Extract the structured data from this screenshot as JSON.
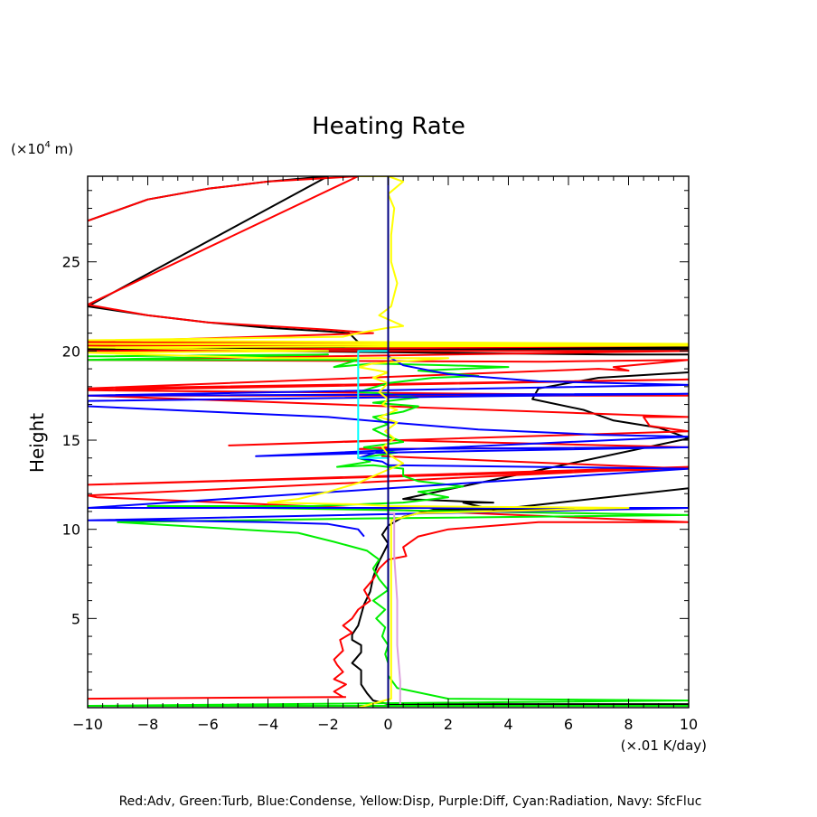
{
  "chart_data": {
    "type": "line",
    "title": "Heating Rate",
    "ylabel": "Height",
    "y_unit": "(×10",
    "y_unit_exp": "4",
    "y_unit_suffix": " m)",
    "x_unit": "(×.01 K/day)",
    "xlim": [
      -10,
      10
    ],
    "ylim": [
      0,
      29.8
    ],
    "x_ticks": [
      -10,
      -8,
      -6,
      -4,
      -2,
      0,
      2,
      4,
      6,
      8,
      10
    ],
    "x_tick_labels": [
      "−10",
      "−8",
      "−6",
      "−4",
      "−2",
      "0",
      "2",
      "4",
      "6",
      "8",
      "10"
    ],
    "y_ticks": [
      5,
      10,
      15,
      20,
      25
    ],
    "y_tick_labels": [
      "5",
      "10",
      "15",
      "20",
      "25"
    ],
    "grid": false,
    "legend_text": "Red:Adv, Green:Turb, Blue:Condense, Yellow:Disp, Purple:Diff, Cyan:Radiation, Navy: SfcFluc",
    "legend_position": "bottom",
    "colors": {
      "red": "#ff0000",
      "black": "#000000",
      "green": "#00ee00",
      "blue": "#0000ff",
      "yellow": "#ffff00",
      "purple": "#dda0dd",
      "cyan": "#00ffff",
      "navy": "#000080"
    },
    "series": [
      {
        "key": "black",
        "color": "#000000",
        "points": [
          [
            -10,
            27.3
          ],
          [
            -8,
            28.5
          ],
          [
            -6,
            29.1
          ],
          [
            -4,
            29.5
          ],
          [
            -2,
            29.8
          ],
          [
            -10,
            22.5
          ],
          [
            -8,
            22.0
          ],
          [
            -6,
            21.6
          ],
          [
            -4,
            21.3
          ],
          [
            -2,
            21.1
          ],
          [
            -1.3,
            21.0
          ],
          [
            -1,
            20.5
          ],
          [
            -10,
            20.2
          ],
          [
            10,
            20.2
          ],
          [
            10,
            20.1
          ],
          [
            -10,
            20.1
          ],
          [
            7.5,
            19.8
          ],
          [
            10,
            19.8
          ],
          [
            10,
            18.8
          ],
          [
            7,
            18.5
          ],
          [
            5,
            17.9
          ],
          [
            4.8,
            17.3
          ],
          [
            6.5,
            16.7
          ],
          [
            7.5,
            16.1
          ],
          [
            9,
            15.7
          ],
          [
            10,
            15.1
          ],
          [
            0.5,
            11.7
          ],
          [
            3.5,
            11.5
          ],
          [
            2.5,
            11.5
          ],
          [
            3.5,
            11.1
          ],
          [
            10,
            12.3
          ],
          [
            10,
            11.2
          ],
          [
            1.5,
            11.1
          ],
          [
            0.5,
            10.7
          ],
          [
            0,
            10.2
          ],
          [
            -0.2,
            9.7
          ],
          [
            0,
            9.2
          ],
          [
            -0.3,
            8.2
          ],
          [
            -0.4,
            7.8
          ],
          [
            -0.5,
            7.3
          ],
          [
            -0.6,
            6.5
          ],
          [
            -0.8,
            5.8
          ],
          [
            -0.9,
            5.2
          ],
          [
            -1,
            4.6
          ],
          [
            -1.2,
            4.1
          ],
          [
            -1.2,
            3.8
          ],
          [
            -0.9,
            3.5
          ],
          [
            -0.9,
            3.1
          ],
          [
            -1.2,
            2.5
          ],
          [
            -0.9,
            2.1
          ],
          [
            -0.9,
            1.5
          ],
          [
            -0.9,
            1.3
          ],
          [
            -0.7,
            0.8
          ],
          [
            -0.5,
            0.4
          ],
          [
            0,
            0.2
          ],
          [
            10,
            0.2
          ]
        ]
      },
      {
        "key": "red",
        "color": "#ff0000",
        "points": [
          [
            -10,
            27.3
          ],
          [
            -8,
            28.5
          ],
          [
            -6,
            29.1
          ],
          [
            -4,
            29.5
          ],
          [
            -2,
            29.7
          ],
          [
            -1,
            29.8
          ],
          [
            -10,
            22.6
          ],
          [
            -8,
            22.0
          ],
          [
            -6,
            21.6
          ],
          [
            -4,
            21.4
          ],
          [
            -2,
            21.2
          ],
          [
            -0.5,
            21.0
          ],
          [
            -10,
            20.5
          ],
          [
            5,
            20.4
          ],
          [
            -10,
            20.3
          ],
          [
            10,
            20.3
          ],
          [
            -10,
            20.0
          ],
          [
            10,
            20.0
          ],
          [
            -10,
            19.5
          ],
          [
            5.2,
            19.4
          ],
          [
            10,
            19.5
          ],
          [
            7.5,
            19.1
          ],
          [
            8,
            18.9
          ],
          [
            7,
            19.0
          ],
          [
            -10,
            17.9
          ],
          [
            10,
            18.4
          ],
          [
            -10,
            17.8
          ],
          [
            10,
            17.5
          ],
          [
            -10,
            17.5
          ],
          [
            10,
            16.3
          ],
          [
            8.5,
            16.3
          ],
          [
            8.7,
            15.8
          ],
          [
            10,
            15.5
          ],
          [
            -5.3,
            14.7
          ],
          [
            0,
            15.0
          ],
          [
            10,
            14.6
          ],
          [
            -1,
            14.5
          ],
          [
            0,
            14.6
          ],
          [
            -0.2,
            14.1
          ],
          [
            10,
            13.4
          ],
          [
            -10,
            12.5
          ],
          [
            10,
            13.5
          ],
          [
            -10,
            11.9
          ],
          [
            -9.7,
            11.8
          ],
          [
            10,
            10.4
          ],
          [
            5,
            10.4
          ],
          [
            2,
            10.0
          ],
          [
            1,
            9.6
          ],
          [
            0.5,
            9.0
          ],
          [
            0.6,
            8.5
          ],
          [
            0,
            8.3
          ],
          [
            -0.3,
            7.8
          ],
          [
            -0.5,
            7.2
          ],
          [
            -0.8,
            6.6
          ],
          [
            -0.6,
            6.0
          ],
          [
            -1,
            5.5
          ],
          [
            -1.2,
            5.0
          ],
          [
            -1.5,
            4.6
          ],
          [
            -1.2,
            4.2
          ],
          [
            -1.6,
            3.8
          ],
          [
            -1.5,
            3.2
          ],
          [
            -1.8,
            2.7
          ],
          [
            -1.7,
            2.4
          ],
          [
            -1.5,
            2.0
          ],
          [
            -1.8,
            1.6
          ],
          [
            -1.4,
            1.3
          ],
          [
            -1.8,
            0.9
          ],
          [
            -1.5,
            0.6
          ],
          [
            -10,
            0.5
          ],
          [
            -1.4,
            0.6
          ]
        ]
      },
      {
        "key": "green",
        "color": "#00ee00",
        "points": [
          [
            -10,
            19.7
          ],
          [
            -2,
            19.8
          ],
          [
            -10,
            19.5
          ],
          [
            -1,
            19.5
          ],
          [
            -1.8,
            19.1
          ],
          [
            -0.5,
            19.3
          ],
          [
            2,
            19.2
          ],
          [
            4,
            19.1
          ],
          [
            1,
            18.9
          ],
          [
            3,
            18.6
          ],
          [
            1.5,
            18.5
          ],
          [
            0,
            18.2
          ],
          [
            -1,
            17.7
          ],
          [
            0,
            17.6
          ],
          [
            1,
            17.4
          ],
          [
            -0.5,
            17.1
          ],
          [
            1,
            16.9
          ],
          [
            0.5,
            16.6
          ],
          [
            -0.5,
            16.3
          ],
          [
            0,
            15.9
          ],
          [
            -0.5,
            15.6
          ],
          [
            0,
            15.2
          ],
          [
            0.5,
            14.9
          ],
          [
            -0.8,
            14.6
          ],
          [
            0.3,
            14.3
          ],
          [
            -1,
            14.0
          ],
          [
            -0.6,
            13.8
          ],
          [
            -1.7,
            13.5
          ],
          [
            -0.5,
            13.6
          ],
          [
            0.5,
            13.4
          ],
          [
            0.5,
            13.0
          ],
          [
            1,
            12.7
          ],
          [
            2.5,
            12.4
          ],
          [
            1,
            12.1
          ],
          [
            2,
            11.8
          ],
          [
            0.5,
            11.5
          ],
          [
            -2.5,
            11.3
          ],
          [
            -8,
            11.3
          ],
          [
            10,
            10.8
          ],
          [
            -1,
            10.6
          ],
          [
            -9,
            10.4
          ],
          [
            -3,
            9.8
          ],
          [
            -1.8,
            9.3
          ],
          [
            -0.7,
            8.8
          ],
          [
            -0.3,
            8.3
          ],
          [
            -0.5,
            7.8
          ],
          [
            -0.3,
            7.2
          ],
          [
            0,
            6.6
          ],
          [
            -0.5,
            6.0
          ],
          [
            -0.1,
            5.5
          ],
          [
            -0.4,
            5.0
          ],
          [
            -0.1,
            4.5
          ],
          [
            -0.2,
            4.0
          ],
          [
            0,
            3.5
          ],
          [
            -0.1,
            3.0
          ],
          [
            0,
            2.5
          ],
          [
            0,
            1.8
          ],
          [
            0.3,
            1.1
          ],
          [
            2,
            0.5
          ],
          [
            10,
            0.4
          ],
          [
            -10,
            0.1
          ],
          [
            10,
            0.1
          ]
        ]
      },
      {
        "key": "blue",
        "color": "#0000ff",
        "points": [
          [
            0,
            29.8
          ],
          [
            0,
            20.5
          ],
          [
            0,
            19.7
          ],
          [
            0.5,
            19.2
          ],
          [
            2,
            18.7
          ],
          [
            5,
            18.3
          ],
          [
            10,
            18.1
          ],
          [
            -10,
            17.5
          ],
          [
            10,
            17.6
          ],
          [
            -10,
            17.2
          ],
          [
            -10,
            16.9
          ],
          [
            -6,
            16.6
          ],
          [
            -2,
            16.3
          ],
          [
            0,
            16.0
          ],
          [
            3,
            15.6
          ],
          [
            7,
            15.3
          ],
          [
            10,
            15.2
          ],
          [
            -4.4,
            14.1
          ],
          [
            0,
            14.3
          ],
          [
            10,
            14.6
          ],
          [
            0,
            14.5
          ],
          [
            -1,
            14.0
          ],
          [
            -0.2,
            13.8
          ],
          [
            0,
            13.6
          ],
          [
            10,
            13.4
          ],
          [
            -10,
            11.2
          ],
          [
            10,
            11.2
          ],
          [
            -10,
            10.5
          ],
          [
            -8,
            10.5
          ],
          [
            -4,
            10.4
          ],
          [
            -2,
            10.3
          ],
          [
            -1,
            10.0
          ],
          [
            -0.8,
            9.6
          ]
        ]
      },
      {
        "key": "yellow",
        "color": "#ffff00",
        "points": [
          [
            -1,
            29.8
          ],
          [
            0,
            29.8
          ],
          [
            0.5,
            29.5
          ],
          [
            0,
            28.8
          ],
          [
            0.2,
            28.0
          ],
          [
            0.1,
            26.5
          ],
          [
            0.1,
            25.0
          ],
          [
            0.3,
            23.8
          ],
          [
            0.1,
            22.5
          ],
          [
            -0.3,
            22.0
          ],
          [
            0.5,
            21.4
          ],
          [
            0,
            21.3
          ],
          [
            -1,
            21.0
          ],
          [
            -1.5,
            20.8
          ],
          [
            -10,
            20.6
          ],
          [
            10,
            20.4
          ],
          [
            -10,
            20.4
          ],
          [
            10,
            20.3
          ],
          [
            -10,
            20.2
          ],
          [
            -2,
            20.0
          ],
          [
            -10,
            19.9
          ],
          [
            -4,
            19.6
          ],
          [
            2,
            19.6
          ],
          [
            -0.5,
            19.3
          ],
          [
            -1,
            19.1
          ],
          [
            0,
            18.8
          ],
          [
            -0.5,
            18.5
          ],
          [
            0,
            18.2
          ],
          [
            -0.3,
            17.7
          ],
          [
            0,
            17.3
          ],
          [
            -0.2,
            17.0
          ],
          [
            0.3,
            16.7
          ],
          [
            -0.3,
            16.3
          ],
          [
            0.3,
            16.0
          ],
          [
            -0.1,
            15.5
          ],
          [
            0.2,
            15.1
          ],
          [
            -0.2,
            14.6
          ],
          [
            0,
            14.2
          ],
          [
            0.5,
            13.7
          ],
          [
            -0.2,
            13.2
          ],
          [
            -1,
            12.6
          ],
          [
            -2,
            12.1
          ],
          [
            -3,
            11.7
          ],
          [
            -4,
            11.5
          ],
          [
            -1,
            11.4
          ],
          [
            0,
            11.3
          ],
          [
            8,
            11.2
          ],
          [
            1,
            10.9
          ],
          [
            0.1,
            10.5
          ],
          [
            0.1,
            9.5
          ],
          [
            0.1,
            8.0
          ],
          [
            0.1,
            5.0
          ],
          [
            0.1,
            2.0
          ],
          [
            0.1,
            0.5
          ],
          [
            -1,
            0
          ]
        ]
      },
      {
        "key": "purple",
        "color": "#dda0dd",
        "points": [
          [
            0,
            10.9
          ],
          [
            0.2,
            10.9
          ],
          [
            0.2,
            8.5
          ],
          [
            0.3,
            6.0
          ],
          [
            0.3,
            3.5
          ],
          [
            0.4,
            1.5
          ],
          [
            0.4,
            0.2
          ]
        ]
      },
      {
        "key": "cyan",
        "color": "#00ffff",
        "points": [
          [
            0,
            20.0
          ],
          [
            -1,
            20.0
          ],
          [
            -1,
            14.0
          ],
          [
            0,
            14.0
          ]
        ]
      },
      {
        "key": "navy",
        "color": "#000080",
        "points": [
          [
            0,
            29.8
          ],
          [
            0,
            0
          ]
        ]
      }
    ]
  }
}
